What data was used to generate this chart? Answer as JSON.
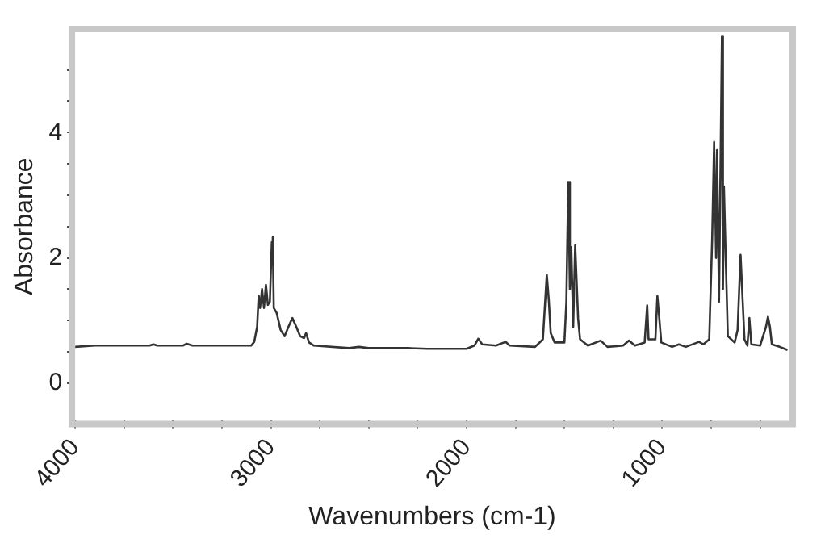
{
  "chart_data": {
    "type": "line",
    "xlabel": "Wavenumbers (cm-1)",
    "ylabel": "Absorbance",
    "xlim": [
      4000,
      350
    ],
    "ylim": [
      -0.6,
      5.6
    ],
    "xticks": [
      4000,
      {
        "value": 3750,
        "label": null
      },
      {
        "value": 3500,
        "label": null
      },
      {
        "value": 3250,
        "label": null
      },
      3000,
      {
        "value": 2750,
        "label": null
      },
      {
        "value": 2500,
        "label": null
      },
      {
        "value": 2250,
        "label": null
      },
      2000,
      {
        "value": 1750,
        "label": null
      },
      {
        "value": 1500,
        "label": null
      },
      {
        "value": 1250,
        "label": null
      },
      1000,
      {
        "value": 750,
        "label": null
      },
      {
        "value": 500,
        "label": null
      }
    ],
    "yticks": [
      0,
      {
        "value": 0.5,
        "label": null
      },
      {
        "value": 1,
        "label": null
      },
      {
        "value": 1.5,
        "label": null
      },
      2,
      {
        "value": 2.5,
        "label": null
      },
      {
        "value": 3,
        "label": null
      },
      {
        "value": 3.5,
        "label": null
      },
      4,
      {
        "value": 4.5,
        "label": null
      },
      {
        "value": 5,
        "label": null
      }
    ],
    "grid": false,
    "legend": false,
    "marker": "none",
    "line_style": "solid",
    "series": [
      {
        "color": "#333333",
        "x": [
          4000,
          3900,
          3620,
          3600,
          3580,
          3450,
          3430,
          3400,
          3100,
          3085,
          3070,
          3062,
          3055,
          3045,
          3035,
          3025,
          3015,
          3005,
          2995,
          2990,
          2985,
          2970,
          2950,
          2930,
          2910,
          2890,
          2870,
          2850,
          2830,
          2820,
          2805,
          2780,
          2600,
          2550,
          2500,
          2300,
          2200,
          2000,
          1960,
          1940,
          1920,
          1850,
          1800,
          1780,
          1650,
          1610,
          1590,
          1580,
          1570,
          1550,
          1500,
          1490,
          1480,
          1472,
          1465,
          1455,
          1445,
          1430,
          1420,
          1380,
          1315,
          1280,
          1200,
          1170,
          1140,
          1090,
          1077,
          1070,
          1035,
          1025,
          1015,
          1005,
          950,
          915,
          880,
          812,
          790,
          760,
          745,
          735,
          725,
          720,
          710,
          695,
          690,
          685,
          675,
          665,
          630,
          615,
          600,
          590,
          580,
          565,
          555,
          545,
          500,
          470,
          460,
          450,
          440,
          400,
          375,
          360
        ],
        "values": [
          0.58,
          0.6,
          0.6,
          0.62,
          0.6,
          0.6,
          0.63,
          0.6,
          0.6,
          0.66,
          0.9,
          1.4,
          1.2,
          1.5,
          1.2,
          1.57,
          1.25,
          1.3,
          2.25,
          2.33,
          1.2,
          1.12,
          0.85,
          0.75,
          0.9,
          1.04,
          0.9,
          0.75,
          0.72,
          0.8,
          0.65,
          0.6,
          0.56,
          0.58,
          0.56,
          0.56,
          0.55,
          0.55,
          0.6,
          0.71,
          0.62,
          0.6,
          0.66,
          0.6,
          0.58,
          0.7,
          1.73,
          1.34,
          0.8,
          0.65,
          0.65,
          1.3,
          3.21,
          1.5,
          2.17,
          0.9,
          2.2,
          1.03,
          0.7,
          0.6,
          0.68,
          0.58,
          0.6,
          0.68,
          0.6,
          0.65,
          1.24,
          0.7,
          0.7,
          1.39,
          1.03,
          0.65,
          0.58,
          0.62,
          0.58,
          0.66,
          0.62,
          0.7,
          2.3,
          3.85,
          2.0,
          3.72,
          1.3,
          5.54,
          1.5,
          3.14,
          1.92,
          0.75,
          0.65,
          0.85,
          2.05,
          1.37,
          0.7,
          0.6,
          1.04,
          0.62,
          0.6,
          0.9,
          1.06,
          0.9,
          0.62,
          0.58,
          0.55,
          0.53
        ]
      }
    ]
  }
}
